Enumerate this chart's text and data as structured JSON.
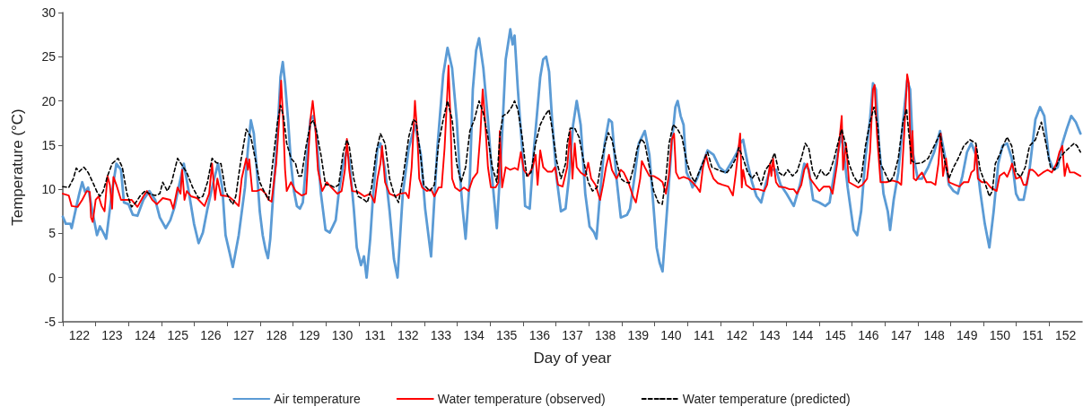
{
  "chart_data": {
    "type": "line",
    "xlabel": "Day of year",
    "ylabel": "Temperature (°C)",
    "legend": "bottom",
    "marker": "none",
    "xlim": [
      122,
      153
    ],
    "ylim": [
      -5,
      30
    ],
    "yticks": [
      -5,
      0,
      5,
      10,
      15,
      20,
      25,
      30
    ],
    "xticks": [
      {
        "value": 122,
        "label": null
      },
      {
        "value": 123,
        "label": null
      },
      {
        "value": 124,
        "label": null
      },
      {
        "value": 125,
        "label": null
      },
      {
        "value": 126,
        "label": null
      },
      {
        "value": 127,
        "label": null
      },
      {
        "value": 128,
        "label": null
      },
      {
        "value": 129,
        "label": null
      },
      {
        "value": 130,
        "label": null
      },
      {
        "value": 131,
        "label": null
      },
      {
        "value": 132,
        "label": null
      },
      {
        "value": 133,
        "label": null
      },
      {
        "value": 134,
        "label": null
      },
      {
        "value": 135,
        "label": null
      },
      {
        "value": 136,
        "label": null
      },
      {
        "value": 137,
        "label": null
      },
      {
        "value": 138,
        "label": null
      },
      {
        "value": 139,
        "label": null
      },
      {
        "value": 140,
        "label": null
      },
      {
        "value": 141,
        "label": null
      },
      {
        "value": 142,
        "label": null
      },
      {
        "value": 143,
        "label": null
      },
      {
        "value": 144,
        "label": null
      },
      {
        "value": 145,
        "label": null
      },
      {
        "value": 146,
        "label": null
      },
      {
        "value": 147,
        "label": null
      },
      {
        "value": 148,
        "label": null
      },
      {
        "value": 149,
        "label": null
      },
      {
        "value": 150,
        "label": null
      },
      {
        "value": 151,
        "label": null
      },
      {
        "value": 152,
        "label": null
      },
      {
        "value": 122.5,
        "label": "122"
      },
      {
        "value": 123.5,
        "label": "123"
      },
      {
        "value": 124.5,
        "label": "124"
      },
      {
        "value": 125.5,
        "label": "125"
      },
      {
        "value": 126.5,
        "label": "126"
      },
      {
        "value": 127.5,
        "label": "127"
      },
      {
        "value": 128.5,
        "label": "128"
      },
      {
        "value": 129.5,
        "label": "129"
      },
      {
        "value": 130.5,
        "label": "130"
      },
      {
        "value": 131.5,
        "label": "131"
      },
      {
        "value": 132.5,
        "label": "132"
      },
      {
        "value": 133.5,
        "label": "133"
      },
      {
        "value": 134.5,
        "label": "134"
      },
      {
        "value": 135.5,
        "label": "135"
      },
      {
        "value": 136.5,
        "label": "136"
      },
      {
        "value": 137.5,
        "label": "137"
      },
      {
        "value": 138.5,
        "label": "138"
      },
      {
        "value": 139.5,
        "label": "139"
      },
      {
        "value": 140.5,
        "label": "140"
      },
      {
        "value": 141.5,
        "label": "141"
      },
      {
        "value": 142.5,
        "label": "142"
      },
      {
        "value": 143.5,
        "label": "143"
      },
      {
        "value": 144.5,
        "label": "144"
      },
      {
        "value": 145.5,
        "label": "145"
      },
      {
        "value": 146.5,
        "label": "146"
      },
      {
        "value": 147.5,
        "label": "147"
      },
      {
        "value": 148.5,
        "label": "148"
      },
      {
        "value": 149.5,
        "label": "149"
      },
      {
        "value": 150.5,
        "label": "150"
      },
      {
        "value": 151.5,
        "label": "151"
      },
      {
        "value": 152.5,
        "label": "152"
      }
    ],
    "series": [
      {
        "name": "Air temperature",
        "color": "#5b9bd5",
        "line_style": "solid",
        "x": [
          122.0,
          122.09,
          122.23,
          122.27,
          122.41,
          122.5,
          122.59,
          122.68,
          122.77,
          122.91,
          123.04,
          123.13,
          123.23,
          123.32,
          123.41,
          123.5,
          123.63,
          123.77,
          123.86,
          124.0,
          124.13,
          124.27,
          124.45,
          124.63,
          124.81,
          124.95,
          125.13,
          125.27,
          125.4,
          125.54,
          125.68,
          125.81,
          125.99,
          126.13,
          126.26,
          126.4,
          126.58,
          126.72,
          126.85,
          126.95,
          127.08,
          127.17,
          127.35,
          127.54,
          127.63,
          127.72,
          127.81,
          127.9,
          127.99,
          128.08,
          128.17,
          128.24,
          128.31,
          128.4,
          128.53,
          128.62,
          128.69,
          128.76,
          128.85,
          128.94,
          129.03,
          129.12,
          129.21,
          129.3,
          129.4,
          129.53,
          129.62,
          129.71,
          129.85,
          129.99,
          130.12,
          130.21,
          130.3,
          130.39,
          130.53,
          130.62,
          130.71,
          130.85,
          130.94,
          131.07,
          131.16,
          131.24,
          131.35,
          131.44,
          131.57,
          131.66,
          131.8,
          131.94,
          132.07,
          132.18,
          132.34,
          132.52,
          132.71,
          132.89,
          133.02,
          133.2,
          133.39,
          133.57,
          133.7,
          133.84,
          133.98,
          134.07,
          134.16,
          134.25,
          134.38,
          134.47,
          134.57,
          134.66,
          134.79,
          134.93,
          135.06,
          135.2,
          135.34,
          135.47,
          135.61,
          135.68,
          135.74,
          135.84,
          135.97,
          136.06,
          136.2,
          136.33,
          136.52,
          136.61,
          136.7,
          136.79,
          136.88,
          137.02,
          137.15,
          137.29,
          137.39,
          137.52,
          137.63,
          137.75,
          137.89,
          138.02,
          138.16,
          138.23,
          138.34,
          138.48,
          138.61,
          138.7,
          138.84,
          138.97,
          139.16,
          139.25,
          139.38,
          139.52,
          139.7,
          139.84,
          139.97,
          140.06,
          140.15,
          140.24,
          140.38,
          140.52,
          140.63,
          140.7,
          140.79,
          140.88,
          140.97,
          141.06,
          141.15,
          141.29,
          141.42,
          141.61,
          141.79,
          141.97,
          142.15,
          142.33,
          142.51,
          142.6,
          142.69,
          142.83,
          142.96,
          143.1,
          143.24,
          143.37,
          143.51,
          143.69,
          143.83,
          144.01,
          144.23,
          144.42,
          144.55,
          144.69,
          144.82,
          145.01,
          145.19,
          145.32,
          145.51,
          145.69,
          145.87,
          146.05,
          146.16,
          146.28,
          146.41,
          146.55,
          146.64,
          146.73,
          146.82,
          146.96,
          147.09,
          147.16,
          147.27,
          147.41,
          147.59,
          147.68,
          147.77,
          147.86,
          148.0,
          148.13,
          148.32,
          148.5,
          148.68,
          148.82,
          148.95,
          149.09,
          149.22,
          149.36,
          149.5,
          149.63,
          149.77,
          149.9,
          150.04,
          150.18,
          150.31,
          150.45,
          150.58,
          150.72,
          150.86,
          150.99,
          151.08,
          151.22,
          151.4,
          151.58,
          151.72,
          151.85,
          151.99,
          152.13,
          152.26,
          152.4,
          152.54,
          152.67,
          152.81,
          152.95
        ],
        "values": [
          6.9,
          6.1,
          6.1,
          5.6,
          8.0,
          9.5,
          10.8,
          9.7,
          10.2,
          7.3,
          4.8,
          5.8,
          5.1,
          4.4,
          7.1,
          9.8,
          12.9,
          12.2,
          8.5,
          8.3,
          7.1,
          7.0,
          8.8,
          9.8,
          8.8,
          6.8,
          5.6,
          6.5,
          8.0,
          10.5,
          12.9,
          10.2,
          6.1,
          3.9,
          5.1,
          7.8,
          10.8,
          12.9,
          10.2,
          4.8,
          2.7,
          1.2,
          4.8,
          10.2,
          14.6,
          17.8,
          16.3,
          12.2,
          7.5,
          4.8,
          3.1,
          2.2,
          4.4,
          9.5,
          16.3,
          22.7,
          24.4,
          22.0,
          17.9,
          12.9,
          9.8,
          8.1,
          7.8,
          8.5,
          12.9,
          17.9,
          18.3,
          16.3,
          9.5,
          5.4,
          5.1,
          5.8,
          6.5,
          9.5,
          12.9,
          14.2,
          13.5,
          7.8,
          3.4,
          1.4,
          2.4,
          0.0,
          4.4,
          9.5,
          14.6,
          15.2,
          12.2,
          7.5,
          2.1,
          0.0,
          9.5,
          14.6,
          17.3,
          13.9,
          7.8,
          2.4,
          14.6,
          23.0,
          26.0,
          23.7,
          17.9,
          11.9,
          7.8,
          4.4,
          11.2,
          21.3,
          25.7,
          27.1,
          23.7,
          17.9,
          11.2,
          5.6,
          14.6,
          24.7,
          28.1,
          26.4,
          27.4,
          21.3,
          14.6,
          8.1,
          7.8,
          14.6,
          22.7,
          24.7,
          25.0,
          23.3,
          17.9,
          11.2,
          7.5,
          7.8,
          11.2,
          17.3,
          20.0,
          17.3,
          9.5,
          5.8,
          5.1,
          4.4,
          9.5,
          15.2,
          17.9,
          17.6,
          11.2,
          6.8,
          7.1,
          7.8,
          11.2,
          15.2,
          16.6,
          13.9,
          7.8,
          3.4,
          1.7,
          0.7,
          7.8,
          15.2,
          19.3,
          20.0,
          18.3,
          17.3,
          11.9,
          11.2,
          10.2,
          11.2,
          12.5,
          14.4,
          13.9,
          12.5,
          11.9,
          13.0,
          14.2,
          15.2,
          15.6,
          12.9,
          10.8,
          9.2,
          8.5,
          10.5,
          12.2,
          12.2,
          10.5,
          9.5,
          8.1,
          10.5,
          12.9,
          12.2,
          8.8,
          8.5,
          8.1,
          8.5,
          12.9,
          16.3,
          10.2,
          5.4,
          4.8,
          7.5,
          13.5,
          17.9,
          22.0,
          21.3,
          15.2,
          9.5,
          7.5,
          5.4,
          8.8,
          11.9,
          19.0,
          22.3,
          21.3,
          14.0,
          11.2,
          11.2,
          12.5,
          14.2,
          16.6,
          13.9,
          10.5,
          9.8,
          9.5,
          11.5,
          14.2,
          15.2,
          13.9,
          9.8,
          6.1,
          3.4,
          7.5,
          12.9,
          14.9,
          15.2,
          13.5,
          9.5,
          8.8,
          8.8,
          12.2,
          17.9,
          19.3,
          18.3,
          13.5,
          12.2,
          12.5,
          15.2,
          16.9,
          18.3,
          17.6,
          16.3
        ]
      },
      {
        "name": "Water temperature (observed)",
        "color": "#ff0000",
        "line_style": "solid",
        "x": [
          122.0,
          122.18,
          122.27,
          122.45,
          122.59,
          122.73,
          122.82,
          122.86,
          122.91,
          123.0,
          123.09,
          123.18,
          123.27,
          123.36,
          123.43,
          123.5,
          123.54,
          123.63,
          123.77,
          123.95,
          124.09,
          124.27,
          124.45,
          124.56,
          124.72,
          124.86,
          125.04,
          125.27,
          125.36,
          125.49,
          125.58,
          125.63,
          125.7,
          125.77,
          125.9,
          126.08,
          126.31,
          126.45,
          126.54,
          126.63,
          126.7,
          126.81,
          127.04,
          127.17,
          127.35,
          127.44,
          127.58,
          127.63,
          127.67,
          127.76,
          127.9,
          128.03,
          128.17,
          128.26,
          128.35,
          128.49,
          128.58,
          128.64,
          128.7,
          128.76,
          128.81,
          128.94,
          129.08,
          129.26,
          129.4,
          129.53,
          129.6,
          129.67,
          129.76,
          129.89,
          130.03,
          130.17,
          130.35,
          130.48,
          130.58,
          130.64,
          130.71,
          130.8,
          130.98,
          131.17,
          131.35,
          131.48,
          131.57,
          131.66,
          131.71,
          131.8,
          131.94,
          132.12,
          132.25,
          132.43,
          132.52,
          132.61,
          132.71,
          132.78,
          132.84,
          132.93,
          133.07,
          133.2,
          133.3,
          133.43,
          133.52,
          133.61,
          133.7,
          133.73,
          133.79,
          133.84,
          133.93,
          134.07,
          134.2,
          134.34,
          134.47,
          134.61,
          134.7,
          134.77,
          134.84,
          134.93,
          135.02,
          135.16,
          135.25,
          135.29,
          135.36,
          135.47,
          135.61,
          135.75,
          135.84,
          135.93,
          136.02,
          136.15,
          136.29,
          136.38,
          136.44,
          136.52,
          136.61,
          136.74,
          136.88,
          136.97,
          137.06,
          137.2,
          137.34,
          137.43,
          137.5,
          137.57,
          137.63,
          137.75,
          137.89,
          137.98,
          138.07,
          138.2,
          138.34,
          138.43,
          138.52,
          138.61,
          138.7,
          138.84,
          138.97,
          139.06,
          139.2,
          139.34,
          139.43,
          139.56,
          139.61,
          139.7,
          139.84,
          139.97,
          140.11,
          140.24,
          140.34,
          140.43,
          140.52,
          140.59,
          140.65,
          140.74,
          140.88,
          141.02,
          141.15,
          141.29,
          141.38,
          141.47,
          141.56,
          141.65,
          141.79,
          141.92,
          142.06,
          142.24,
          142.38,
          142.47,
          142.6,
          142.65,
          142.69,
          142.78,
          142.96,
          143.15,
          143.33,
          143.42,
          143.51,
          143.55,
          143.6,
          143.69,
          143.78,
          143.96,
          144.1,
          144.23,
          144.33,
          144.46,
          144.55,
          144.64,
          144.73,
          144.87,
          145.01,
          145.14,
          145.32,
          145.41,
          145.55,
          145.69,
          145.73,
          145.82,
          145.91,
          146.05,
          146.19,
          146.32,
          146.46,
          146.55,
          146.64,
          146.69,
          146.76,
          146.87,
          147.05,
          147.23,
          147.41,
          147.5,
          147.59,
          147.68,
          147.73,
          147.79,
          147.84,
          147.88,
          147.95,
          148.04,
          148.13,
          148.27,
          148.41,
          148.54,
          148.63,
          148.7,
          148.77,
          148.86,
          148.95,
          149.13,
          149.27,
          149.4,
          149.54,
          149.63,
          149.72,
          149.77,
          149.83,
          149.95,
          150.09,
          150.22,
          150.31,
          150.4,
          150.49,
          150.63,
          150.72,
          150.81,
          150.87,
          150.99,
          151.13,
          151.22,
          151.31,
          151.4,
          151.49,
          151.58,
          151.67,
          151.81,
          151.95,
          152.08,
          152.22,
          152.31,
          152.4,
          152.47,
          152.54,
          152.63,
          152.76,
          152.95
        ],
        "values": [
          9.5,
          9.3,
          8.1,
          8.0,
          8.8,
          9.8,
          9.7,
          6.8,
          6.3,
          8.8,
          9.2,
          8.1,
          7.5,
          11.5,
          10.5,
          7.8,
          11.4,
          10.5,
          8.8,
          8.8,
          8.8,
          8.0,
          9.2,
          9.8,
          8.8,
          8.3,
          9.0,
          8.8,
          7.8,
          10.2,
          9.5,
          12.2,
          8.8,
          9.8,
          9.2,
          9.0,
          8.1,
          9.5,
          12.9,
          8.8,
          11.2,
          9.3,
          9.2,
          8.8,
          8.1,
          11.2,
          13.5,
          12.2,
          13.4,
          9.8,
          9.8,
          10.0,
          9.5,
          8.8,
          8.6,
          12.9,
          17.9,
          22.3,
          17.9,
          12.2,
          9.8,
          10.8,
          9.8,
          9.3,
          9.5,
          17.9,
          20.0,
          17.6,
          12.2,
          9.8,
          10.8,
          10.2,
          9.5,
          9.8,
          12.2,
          15.7,
          12.2,
          9.8,
          9.7,
          9.2,
          9.5,
          8.5,
          11.2,
          12.9,
          14.9,
          10.8,
          9.5,
          9.2,
          9.5,
          9.6,
          9.0,
          12.5,
          20.0,
          16.3,
          11.2,
          10.2,
          9.8,
          10.0,
          9.2,
          10.2,
          10.2,
          14.6,
          21.3,
          24.0,
          17.9,
          11.2,
          10.2,
          9.8,
          10.2,
          9.8,
          11.2,
          11.9,
          16.3,
          21.3,
          17.9,
          12.5,
          10.2,
          10.2,
          10.8,
          16.6,
          10.2,
          12.5,
          12.2,
          12.4,
          12.2,
          14.2,
          12.2,
          11.5,
          12.5,
          13.9,
          10.5,
          14.4,
          12.5,
          12.0,
          12.0,
          12.5,
          10.5,
          10.3,
          12.5,
          16.6,
          11.2,
          15.2,
          12.5,
          11.9,
          11.5,
          13.0,
          11.2,
          10.5,
          8.8,
          10.5,
          12.5,
          13.9,
          12.2,
          11.2,
          12.2,
          11.9,
          10.8,
          9.2,
          8.5,
          11.2,
          13.2,
          12.5,
          11.5,
          11.5,
          11.2,
          10.8,
          9.5,
          11.5,
          15.6,
          16.3,
          11.9,
          11.2,
          11.4,
          11.2,
          10.8,
          10.2,
          9.7,
          12.5,
          13.9,
          12.5,
          11.2,
          10.7,
          10.5,
          10.3,
          9.3,
          11.9,
          16.3,
          10.2,
          12.2,
          10.5,
          10.0,
          10.0,
          9.8,
          10.5,
          12.9,
          11.5,
          13.5,
          10.8,
          10.3,
          10.2,
          10.0,
          10.0,
          9.5,
          10.5,
          12.2,
          12.9,
          11.2,
          10.5,
          9.8,
          10.3,
          10.3,
          9.5,
          12.9,
          18.3,
          12.2,
          15.2,
          10.8,
          10.5,
          10.2,
          10.5,
          11.2,
          14.2,
          21.3,
          21.8,
          16.3,
          10.8,
          10.8,
          11.0,
          10.8,
          10.5,
          16.3,
          23.0,
          22.0,
          12.9,
          16.6,
          11.2,
          11.0,
          11.5,
          11.9,
          10.8,
          10.8,
          10.5,
          12.9,
          16.3,
          11.5,
          13.5,
          10.8,
          10.5,
          10.3,
          10.8,
          10.8,
          11.9,
          12.2,
          14.9,
          11.2,
          10.8,
          10.8,
          10.2,
          10.0,
          9.8,
          11.5,
          11.9,
          11.4,
          12.2,
          12.9,
          11.2,
          11.4,
          10.5,
          10.5,
          12.2,
          12.2,
          11.9,
          11.5,
          11.9,
          12.2,
          11.9,
          12.9,
          14.2,
          14.9,
          11.5,
          12.9,
          11.9,
          11.9,
          11.5
        ]
      },
      {
        "name": "Water temperature (predicted)",
        "color": "#000000",
        "line_style": "dashed",
        "x": [
          122.0,
          122.18,
          122.32,
          122.41,
          122.5,
          122.64,
          122.77,
          122.91,
          123.04,
          123.13,
          123.23,
          123.36,
          123.5,
          123.68,
          123.81,
          123.95,
          124.09,
          124.22,
          124.36,
          124.5,
          124.63,
          124.81,
          124.95,
          125.04,
          125.18,
          125.31,
          125.49,
          125.63,
          125.77,
          125.95,
          126.13,
          126.26,
          126.4,
          126.54,
          126.67,
          126.81,
          126.95,
          127.08,
          127.17,
          127.26,
          127.4,
          127.58,
          127.72,
          127.85,
          127.99,
          128.13,
          128.26,
          128.4,
          128.53,
          128.62,
          128.71,
          128.81,
          128.94,
          129.08,
          129.17,
          129.26,
          129.4,
          129.53,
          129.62,
          129.71,
          129.85,
          129.99,
          130.12,
          130.26,
          130.39,
          130.53,
          130.64,
          130.71,
          130.85,
          130.98,
          131.17,
          131.26,
          131.39,
          131.53,
          131.66,
          131.8,
          131.94,
          132.07,
          132.21,
          132.34,
          132.52,
          132.66,
          132.75,
          132.89,
          132.98,
          133.16,
          133.3,
          133.43,
          133.57,
          133.7,
          133.84,
          133.98,
          134.11,
          134.25,
          134.38,
          134.52,
          134.66,
          134.79,
          134.93,
          135.06,
          135.2,
          135.29,
          135.38,
          135.52,
          135.65,
          135.74,
          135.84,
          135.97,
          136.11,
          136.24,
          136.38,
          136.52,
          136.65,
          136.79,
          136.88,
          137.02,
          137.15,
          137.29,
          137.34,
          137.43,
          137.57,
          137.7,
          137.84,
          137.98,
          138.11,
          138.25,
          138.38,
          138.48,
          138.59,
          138.7,
          138.84,
          138.97,
          139.11,
          139.23,
          139.36,
          139.47,
          139.59,
          139.7,
          139.84,
          139.97,
          140.11,
          140.23,
          140.34,
          140.44,
          140.56,
          140.68,
          140.83,
          140.97,
          141.11,
          141.22,
          141.38,
          141.52,
          141.61,
          141.74,
          141.92,
          142.06,
          142.2,
          142.33,
          142.47,
          142.56,
          142.69,
          142.83,
          142.96,
          143.1,
          143.24,
          143.37,
          143.51,
          143.65,
          143.78,
          143.92,
          144.05,
          144.19,
          144.33,
          144.46,
          144.58,
          144.69,
          144.8,
          144.92,
          145.05,
          145.19,
          145.32,
          145.46,
          145.6,
          145.69,
          145.8,
          145.91,
          146.05,
          146.19,
          146.28,
          146.41,
          146.55,
          146.67,
          146.78,
          146.87,
          147.0,
          147.14,
          147.27,
          147.41,
          147.55,
          147.66,
          147.73,
          147.82,
          147.95,
          148.13,
          148.32,
          148.5,
          148.68,
          148.82,
          148.95,
          149.09,
          149.22,
          149.4,
          149.59,
          149.77,
          149.9,
          150.04,
          150.18,
          150.27,
          150.36,
          150.49,
          150.63,
          150.72,
          150.86,
          150.99,
          151.13,
          151.27,
          151.4,
          151.58,
          151.76,
          151.9,
          152.04,
          152.17,
          152.31,
          152.44,
          152.58,
          152.76,
          152.85,
          152.95
        ],
        "values": [
          10.3,
          10.2,
          11.2,
          12.4,
          12.0,
          12.5,
          11.9,
          10.8,
          9.7,
          9.2,
          9.8,
          11.5,
          12.9,
          13.5,
          12.5,
          9.5,
          8.0,
          8.5,
          9.3,
          9.8,
          9.5,
          9.3,
          9.5,
          10.8,
          9.8,
          10.8,
          13.5,
          12.7,
          11.9,
          10.2,
          9.0,
          9.2,
          10.8,
          13.5,
          13.0,
          12.9,
          9.8,
          8.8,
          8.3,
          9.2,
          12.9,
          16.8,
          15.9,
          13.5,
          10.8,
          9.7,
          8.8,
          13.5,
          17.6,
          19.5,
          18.3,
          15.2,
          13.5,
          12.9,
          11.5,
          11.5,
          14.9,
          17.4,
          17.8,
          16.7,
          13.9,
          10.5,
          10.5,
          10.2,
          10.5,
          14.2,
          15.6,
          14.9,
          11.2,
          9.2,
          8.8,
          8.5,
          10.2,
          14.2,
          16.3,
          15.2,
          11.2,
          9.5,
          8.5,
          11.2,
          15.9,
          17.9,
          17.6,
          13.5,
          10.5,
          9.8,
          10.5,
          15.2,
          17.9,
          20.0,
          17.9,
          12.9,
          10.8,
          12.5,
          16.6,
          17.9,
          20.0,
          18.6,
          15.9,
          12.5,
          10.8,
          15.9,
          18.3,
          18.6,
          19.3,
          20.0,
          19.0,
          15.9,
          11.5,
          11.9,
          15.2,
          17.3,
          18.3,
          19.0,
          16.9,
          13.2,
          11.2,
          12.9,
          15.2,
          16.9,
          16.9,
          15.9,
          13.2,
          10.8,
          9.8,
          10.2,
          13.2,
          14.9,
          16.4,
          15.6,
          13.2,
          11.2,
          10.8,
          10.7,
          12.5,
          14.6,
          15.7,
          15.2,
          12.5,
          9.8,
          8.5,
          8.3,
          11.2,
          15.2,
          17.3,
          16.9,
          15.9,
          13.2,
          11.5,
          10.8,
          12.2,
          13.5,
          14.2,
          12.5,
          12.2,
          12.0,
          11.9,
          12.5,
          13.5,
          14.7,
          13.5,
          11.9,
          11.2,
          11.9,
          10.5,
          12.2,
          12.9,
          14.1,
          11.9,
          11.5,
          12.2,
          11.5,
          12.0,
          13.5,
          15.2,
          14.6,
          12.2,
          11.2,
          12.2,
          11.5,
          11.9,
          13.5,
          15.6,
          16.8,
          15.2,
          12.9,
          11.5,
          10.7,
          11.2,
          14.9,
          17.6,
          19.3,
          17.3,
          12.9,
          11.9,
          10.8,
          11.5,
          13.5,
          17.6,
          19.1,
          16.3,
          13.2,
          12.9,
          13.0,
          13.5,
          14.9,
          16.3,
          13.2,
          11.2,
          12.5,
          13.4,
          14.9,
          15.6,
          15.2,
          12.2,
          10.8,
          9.2,
          9.8,
          12.9,
          13.9,
          15.2,
          15.9,
          14.9,
          11.9,
          11.4,
          12.5,
          14.9,
          15.6,
          17.6,
          15.2,
          12.5,
          12.2,
          13.4,
          14.1,
          14.6,
          15.2,
          14.9,
          14.2
        ]
      }
    ]
  }
}
